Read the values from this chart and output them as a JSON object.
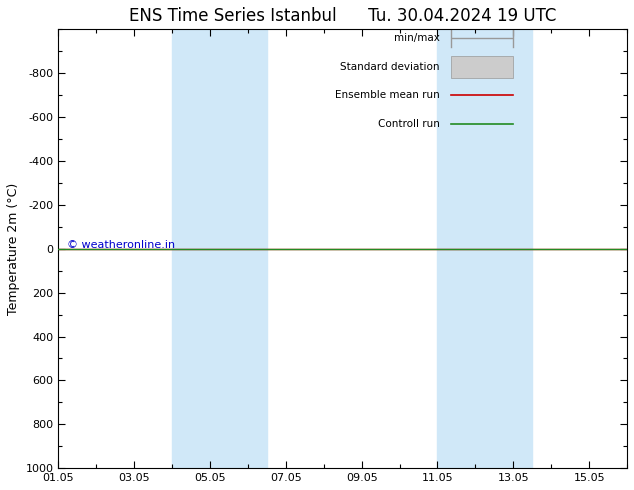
{
  "title": "ENS Time Series Istanbul      Tu. 30.04.2024 19 UTC",
  "ylabel": "Temperature 2m (°C)",
  "ylim_min": -1000,
  "ylim_max": 1000,
  "yticks": [
    -800,
    -600,
    -400,
    -200,
    0,
    200,
    400,
    600,
    800,
    1000
  ],
  "xlim": [
    0,
    15
  ],
  "xtick_positions": [
    0,
    2,
    4,
    6,
    8,
    10,
    12,
    14
  ],
  "xtick_labels": [
    "01.05",
    "03.05",
    "05.05",
    "07.05",
    "09.05",
    "11.05",
    "13.05",
    "15.05"
  ],
  "shaded_bands": [
    {
      "start": 3.0,
      "end": 5.5
    },
    {
      "start": 10.0,
      "end": 12.5
    }
  ],
  "band_color": "#d0e8f8",
  "line_y": 0,
  "green_color": "#228B22",
  "red_color": "#cc0000",
  "legend_labels": [
    "min/max",
    "Standard deviation",
    "Ensemble mean run",
    "Controll run"
  ],
  "legend_line_colors": [
    "#aaaaaa",
    "#cccccc",
    "#cc0000",
    "#228B22"
  ],
  "copyright_text": "© weatheronline.in",
  "copyright_color": "#0000cc",
  "bg_color": "#ffffff",
  "title_fontsize": 12,
  "ylabel_fontsize": 9,
  "tick_fontsize": 8,
  "legend_fontsize": 7.5
}
